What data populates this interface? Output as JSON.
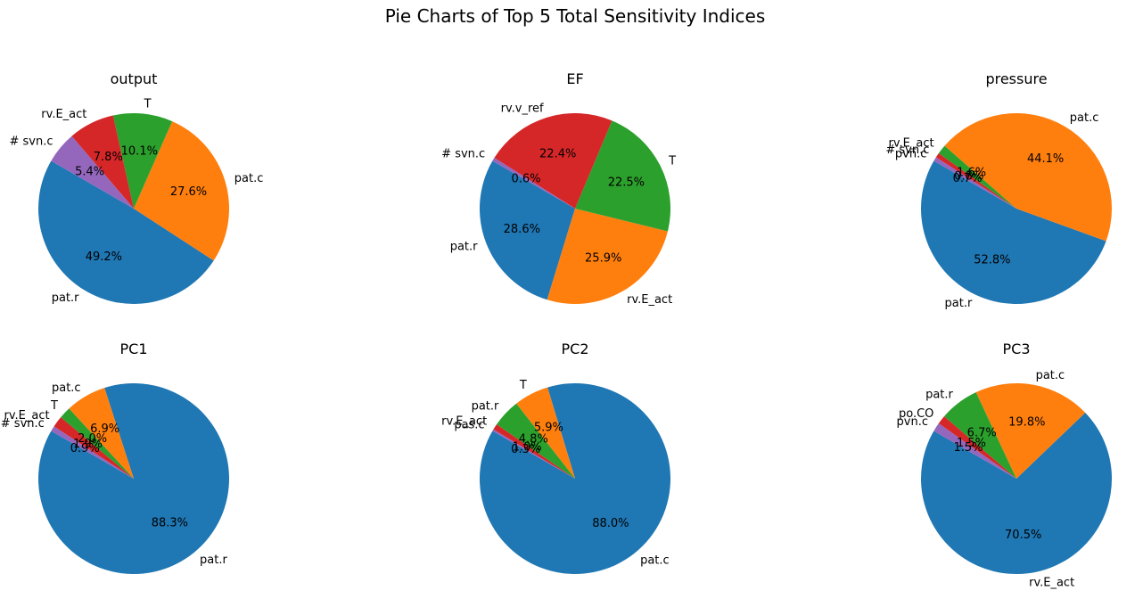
{
  "figure_title": "Pie Charts of Top 5 Total Sensitivity Indices",
  "colors": [
    "#1f77b4",
    "#ff7f0e",
    "#2ca02c",
    "#d62728",
    "#9467bd"
  ],
  "chart_data": [
    {
      "type": "pie",
      "title": "output",
      "labels": [
        "pat.r",
        "pat.c",
        "T",
        "rv.E_act",
        "# svn.c"
      ],
      "values": [
        49.2,
        27.6,
        10.1,
        7.8,
        5.4
      ],
      "percent_labels": [
        "49.2%",
        "27.6%",
        "10.1%",
        "7.8%",
        "5.4%"
      ],
      "start_angle_deg": 150
    },
    {
      "type": "pie",
      "title": "EF",
      "labels": [
        "pat.r",
        "rv.E_act",
        "T",
        "rv.v_ref",
        "# svn.c"
      ],
      "values": [
        28.6,
        25.9,
        22.5,
        22.4,
        0.6
      ],
      "percent_labels": [
        "28.6%",
        "25.9%",
        "22.5%",
        "22.4%",
        "0.6%"
      ],
      "start_angle_deg": 150
    },
    {
      "type": "pie",
      "title": "pressure",
      "labels": [
        "pat.r",
        "pat.c",
        "rv.E_act",
        "# svn.c",
        "pvn.c"
      ],
      "values": [
        52.8,
        44.1,
        1.6,
        0.8,
        0.7
      ],
      "percent_labels": [
        "52.8%",
        "44.1%",
        "1.6%",
        "0.8%",
        "0.7%"
      ],
      "start_angle_deg": 150
    },
    {
      "type": "pie",
      "title": "PC1",
      "labels": [
        "pat.r",
        "pat.c",
        "T",
        "rv.E_act",
        "# svn.c"
      ],
      "values": [
        88.3,
        6.9,
        2.0,
        1.9,
        0.9
      ],
      "percent_labels": [
        "88.3%",
        "6.9%",
        "2.0%",
        "1.9%",
        "0.9%"
      ],
      "start_angle_deg": 150
    },
    {
      "type": "pie",
      "title": "PC2",
      "labels": [
        "pat.c",
        "T",
        "pat.r",
        "rv.E_act",
        "pas.c"
      ],
      "values": [
        88.0,
        5.9,
        4.8,
        1.0,
        0.3
      ],
      "percent_labels": [
        "88.0%",
        "5.9%",
        "4.8%",
        "1.0%",
        "0.3%"
      ],
      "start_angle_deg": 150
    },
    {
      "type": "pie",
      "title": "PC3",
      "labels": [
        "rv.E_act",
        "pat.c",
        "pat.r",
        "po.CO",
        "pvn.c"
      ],
      "values": [
        70.5,
        19.8,
        6.7,
        1.5,
        1.5
      ],
      "percent_labels": [
        "70.5%",
        "19.8%",
        "6.7%",
        "1.5%",
        "1.5%"
      ],
      "start_angle_deg": 150
    }
  ]
}
